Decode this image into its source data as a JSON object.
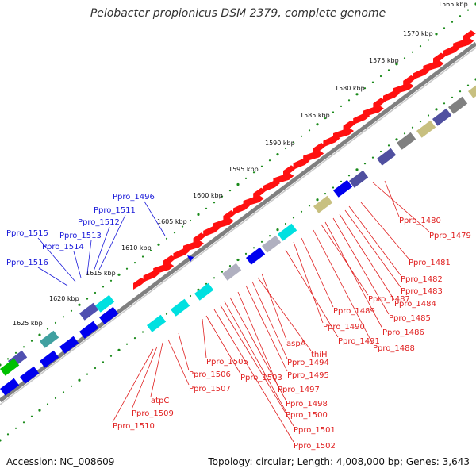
{
  "title": "Pelobacter propionicus DSM 2379, complete genome",
  "accession": "Accession: NC_008609",
  "summary": "Topology: circular; Length: 4,008,000 bp; Genes: 3,643",
  "colors": {
    "backbone": "#808080",
    "forward_gene": "#ff1010",
    "reverse_gene": "#1010e0",
    "tick": "#1a8a1a",
    "blue_label": "#1a1ad9",
    "red_label": "#e02020"
  },
  "ticks": [
    "1565 kbp",
    "1570 kbp",
    "1575 kbp",
    "1580 kbp",
    "1585 kbp",
    "1590 kbp",
    "1595 kbp",
    "1600 kbp",
    "1605 kbp",
    "1610 kbp",
    "1615 kbp",
    "1620 kbp",
    "1625 kbp"
  ],
  "blue_labels": [
    "Ppro_1496",
    "Ppro_1511",
    "Ppro_1512",
    "Ppro_1513",
    "Ppro_1514",
    "Ppro_1515",
    "Ppro_1516"
  ],
  "red_labels": [
    "Ppro_1480",
    "Ppro_1479",
    "Ppro_1481",
    "Ppro_1482",
    "Ppro_1483",
    "Ppro_1484",
    "Ppro_1485",
    "Ppro_1486",
    "Ppro_1487",
    "Ppro_1488",
    "Ppro_1489",
    "Ppro_1490",
    "Ppro_1491",
    "aspA",
    "thiH",
    "Ppro_1494",
    "Ppro_1495",
    "Ppro_1497",
    "Ppro_1498",
    "Ppro_1500",
    "Ppro_1501",
    "Ppro_1502",
    "Ppro_1503",
    "Ppro_1505",
    "Ppro_1506",
    "Ppro_1507",
    "atpC",
    "Ppro_1509",
    "Ppro_1510"
  ]
}
